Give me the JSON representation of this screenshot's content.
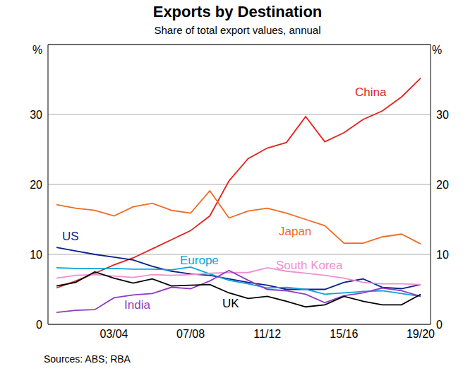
{
  "chart_data": {
    "type": "line",
    "title": "Exports by Destination",
    "subtitle": "Share of total export values, annual",
    "ylabel": "%",
    "note": "Sources: ABS; RBA",
    "categories": [
      null,
      null,
      null,
      "03/04",
      null,
      null,
      null,
      "07/08",
      null,
      null,
      null,
      "11/12",
      null,
      null,
      null,
      "15/16",
      null,
      null,
      null,
      "19/20"
    ],
    "ylim": [
      0,
      40
    ],
    "yticks": [
      0,
      10,
      20,
      30
    ],
    "grid": true,
    "series": [
      {
        "name": "China",
        "color": "#e2231a",
        "values": [
          5.2,
          6.2,
          7.3,
          8.5,
          9.5,
          10.8,
          12.1,
          13.4,
          15.5,
          20.5,
          23.7,
          25.2,
          26.0,
          29.7,
          26.1,
          27.4,
          29.3,
          30.5,
          32.5,
          35.2
        ]
      },
      {
        "name": "Japan",
        "color": "#f26b21",
        "values": [
          17.1,
          16.6,
          16.3,
          15.5,
          16.8,
          17.3,
          16.3,
          15.9,
          19.1,
          15.2,
          16.2,
          16.6,
          15.9,
          15.0,
          14.1,
          11.6,
          11.6,
          12.5,
          12.9,
          11.5
        ]
      },
      {
        "name": "US",
        "color": "#0b1f8c",
        "values": [
          11.0,
          10.5,
          10.0,
          9.6,
          9.2,
          8.3,
          7.6,
          7.2,
          7.0,
          6.5,
          6.0,
          5.6,
          5.0,
          5.0,
          5.0,
          6.0,
          6.5,
          5.3,
          5.1,
          5.7
        ]
      },
      {
        "name": "Europe",
        "color": "#0ba3d8",
        "values": [
          8.1,
          8.0,
          8.0,
          8.0,
          7.9,
          7.9,
          7.8,
          8.2,
          7.2,
          6.3,
          5.8,
          5.2,
          5.3,
          5.0,
          4.3,
          4.5,
          4.7,
          4.8,
          4.4,
          4.0
        ]
      },
      {
        "name": "South Korea",
        "color": "#f08fd0",
        "values": [
          6.6,
          7.0,
          7.1,
          6.9,
          6.7,
          7.1,
          7.0,
          7.1,
          7.3,
          7.4,
          7.4,
          8.1,
          7.6,
          7.3,
          7.0,
          6.6,
          6.0,
          5.8,
          5.8,
          5.7
        ]
      },
      {
        "name": "India",
        "color": "#8e3cc0",
        "values": [
          1.7,
          2.0,
          2.1,
          3.8,
          4.2,
          4.4,
          5.3,
          5.1,
          6.2,
          7.7,
          6.3,
          5.0,
          4.8,
          4.3,
          3.1,
          4.1,
          4.5,
          5.2,
          4.8,
          4.0
        ]
      },
      {
        "name": "UK",
        "color": "#000000",
        "values": [
          5.5,
          6.0,
          7.5,
          6.6,
          5.9,
          6.5,
          5.5,
          5.6,
          5.7,
          4.5,
          3.7,
          4.0,
          3.3,
          2.5,
          2.8,
          4.0,
          3.3,
          2.8,
          2.8,
          4.3
        ]
      }
    ]
  }
}
